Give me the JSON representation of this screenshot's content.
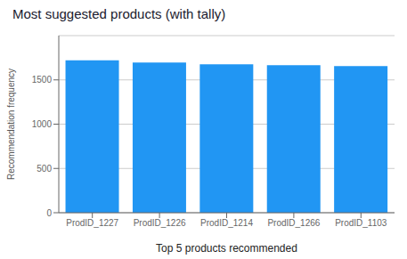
{
  "chart_data": {
    "type": "bar",
    "title": "Most suggested products (with tally)",
    "categories": [
      "ProdID_1227",
      "ProdID_1226",
      "ProdID_1214",
      "ProdID_1266",
      "ProdID_1103"
    ],
    "values": [
      1720,
      1695,
      1675,
      1665,
      1655
    ],
    "color": "#2196F3",
    "xlabel": "Top 5 products recommended",
    "ylabel": "Recommendation frequency",
    "ylim": [
      0,
      2000
    ],
    "yticks": [
      0,
      500,
      1000,
      1500
    ],
    "grid": true
  }
}
